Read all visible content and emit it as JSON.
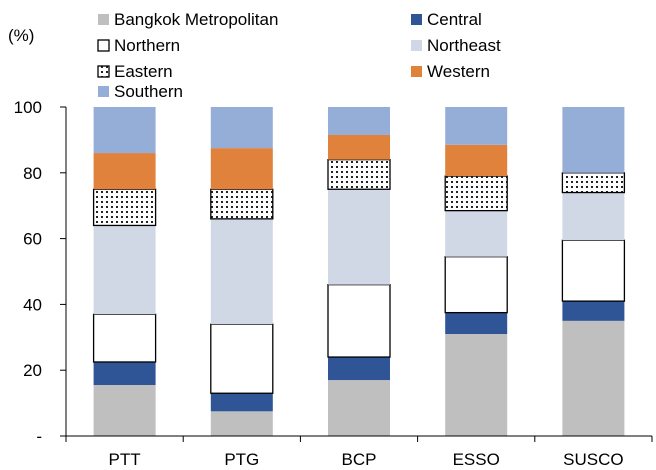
{
  "chart_data": {
    "type": "bar",
    "stacked": true,
    "unit_label": "(%)",
    "categories": [
      "PTT",
      "PTG",
      "BCP",
      "ESSO",
      "SUSCO"
    ],
    "ylim": [
      0,
      100
    ],
    "yticks": [
      {
        "value": 0,
        "label": "-"
      },
      {
        "value": 20,
        "label": "20"
      },
      {
        "value": 40,
        "label": "40"
      },
      {
        "value": 60,
        "label": "60"
      },
      {
        "value": 80,
        "label": "80"
      },
      {
        "value": 100,
        "label": "100"
      }
    ],
    "grid": false,
    "legend_position": "top",
    "series": [
      {
        "name": "Bangkok Metropolitan",
        "color": "#bfbfbf",
        "fill": "solid",
        "values": [
          15.5,
          7.5,
          17,
          31,
          35
        ]
      },
      {
        "name": "Central",
        "color": "#2f5597",
        "fill": "solid",
        "values": [
          7,
          5.5,
          7,
          6.5,
          6
        ]
      },
      {
        "name": "Northern",
        "color": "#ffffff",
        "fill": "outline",
        "values": [
          14.5,
          21,
          22,
          17,
          18.5
        ]
      },
      {
        "name": "Northeast",
        "color": "#d0d7e5",
        "fill": "solid",
        "values": [
          27,
          32,
          29,
          14,
          14.5
        ]
      },
      {
        "name": "Eastern",
        "color": "#ffffff",
        "fill": "dotted",
        "values": [
          11,
          9,
          9,
          10.5,
          6
        ]
      },
      {
        "name": "Western",
        "color": "#e0823c",
        "fill": "solid",
        "values": [
          11,
          12.5,
          7.5,
          9.5,
          0
        ]
      },
      {
        "name": "Southern",
        "color": "#95aed8",
        "fill": "solid",
        "values": [
          14,
          12.5,
          8.5,
          11.5,
          20
        ]
      }
    ]
  }
}
